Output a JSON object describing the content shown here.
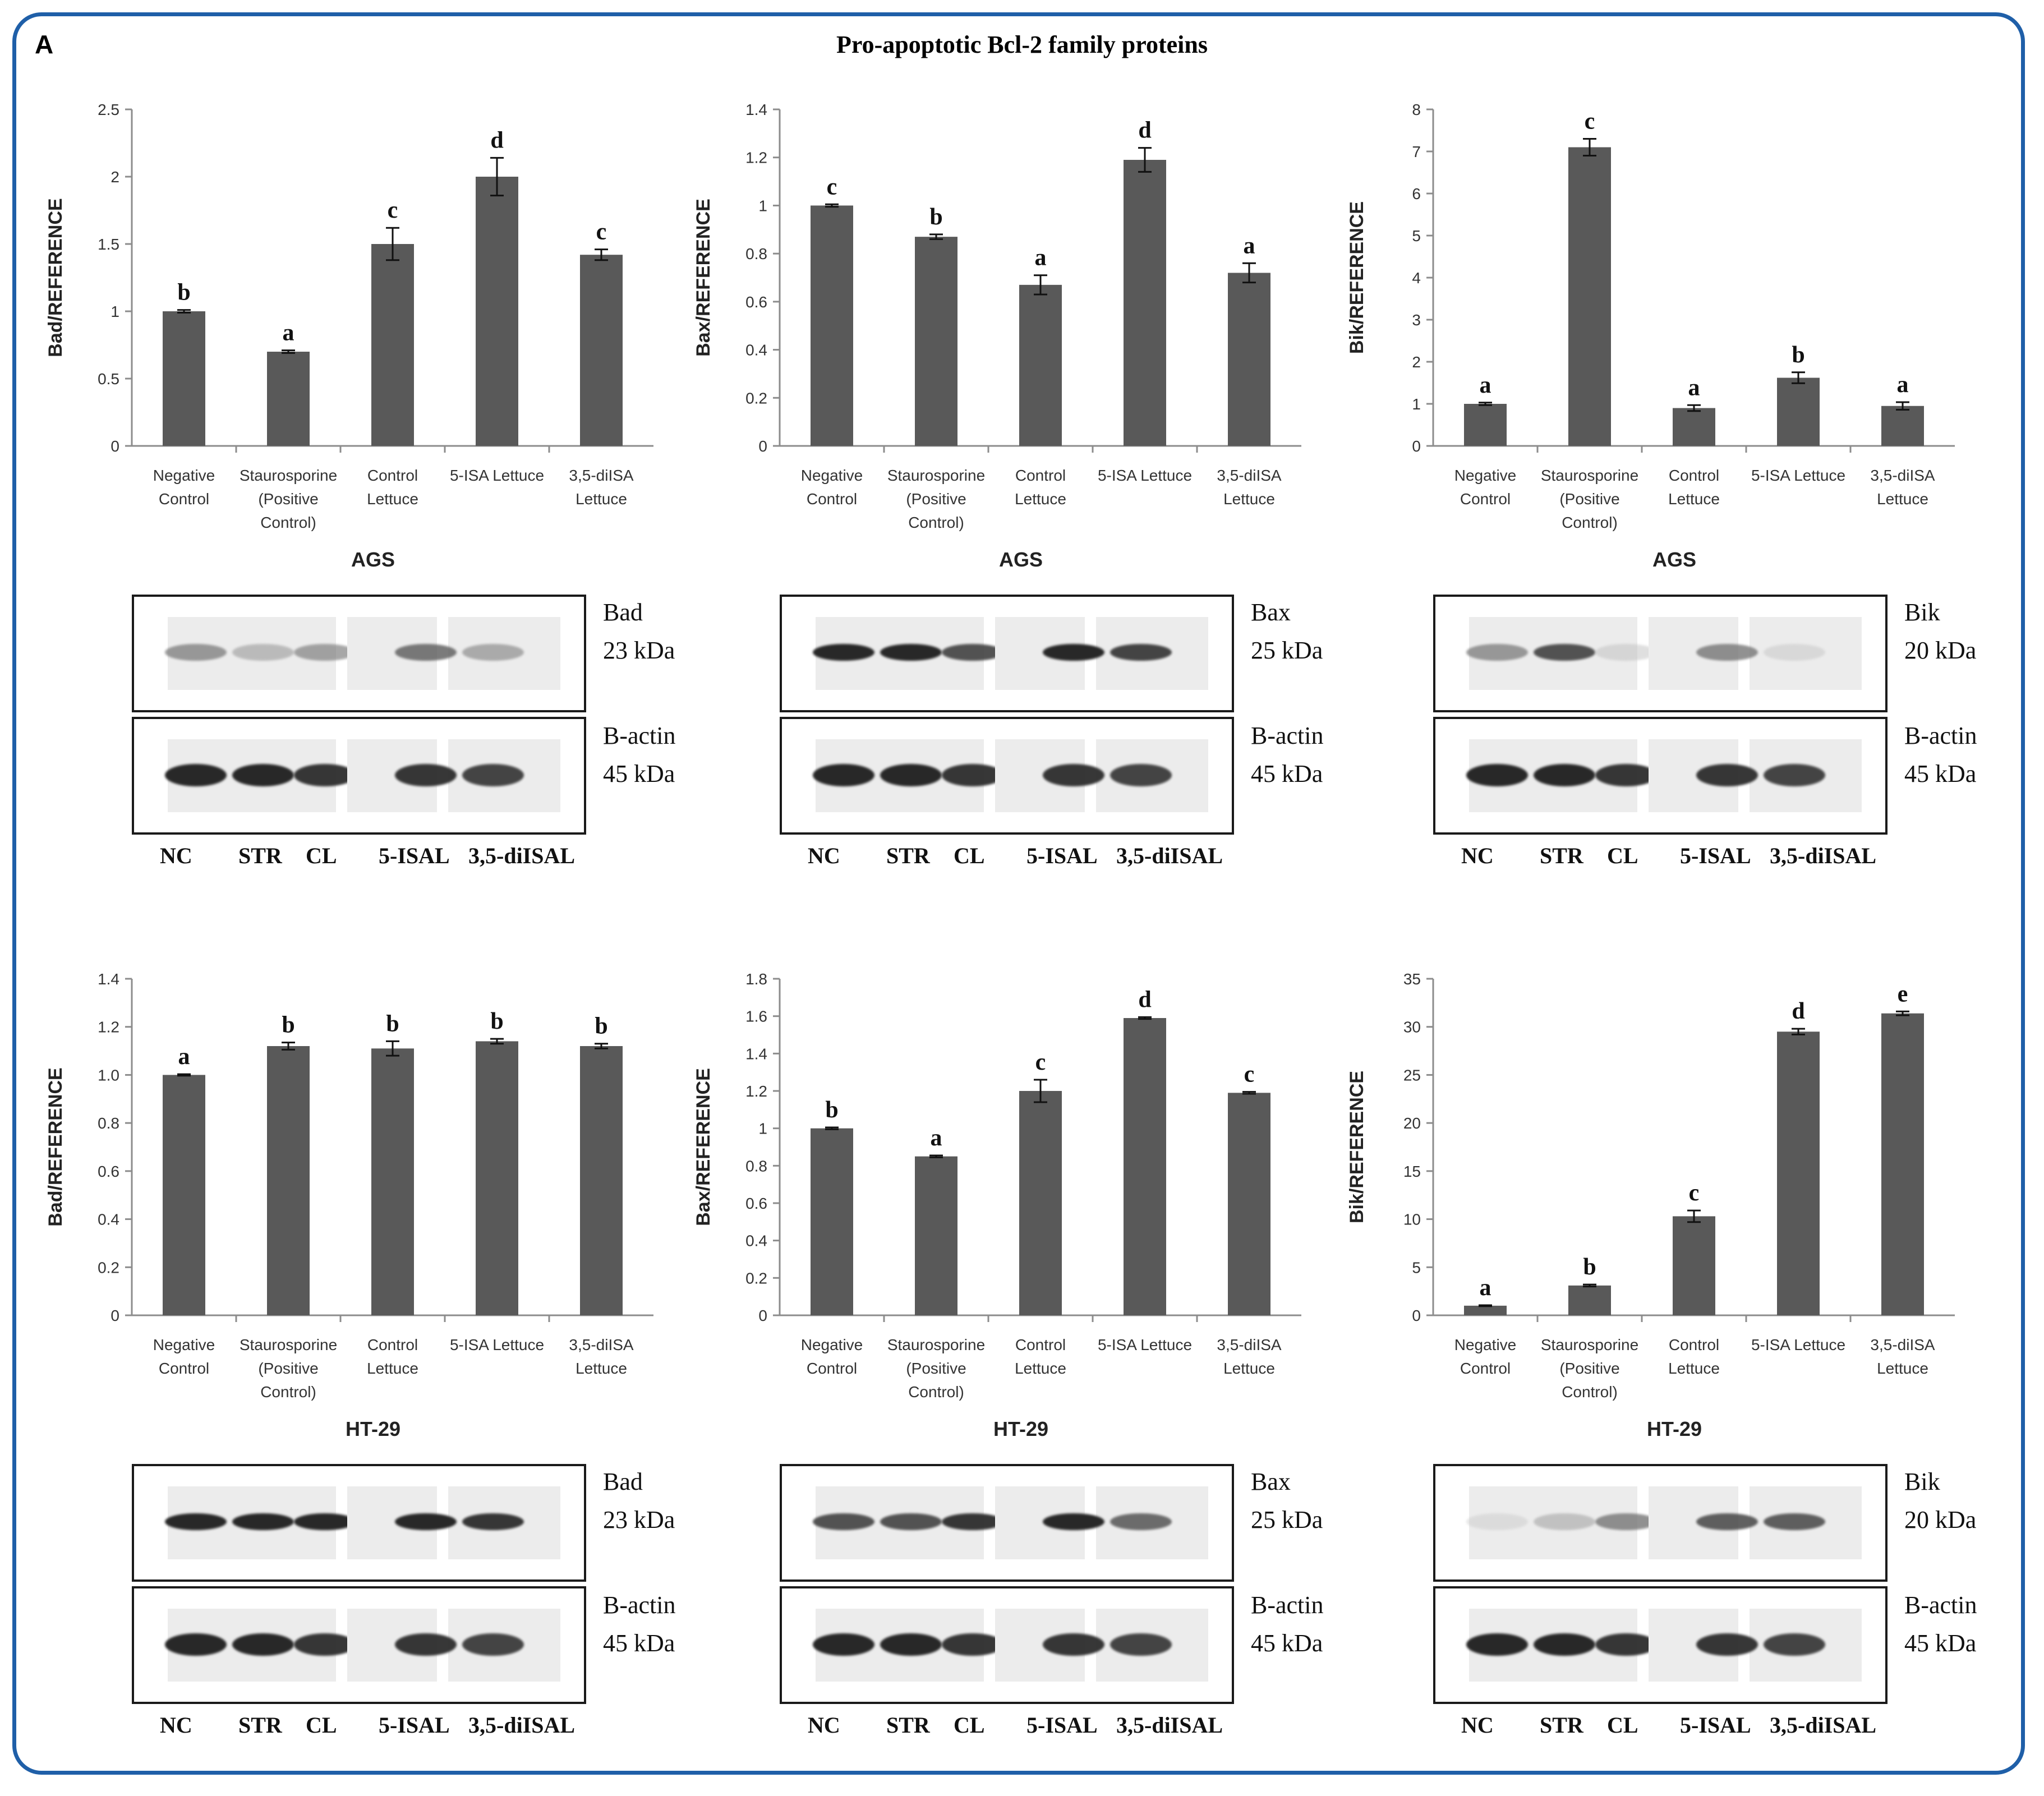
{
  "figure": {
    "letter": "A",
    "title": "Pro-apoptotic Bcl-2 family proteins"
  },
  "colors": {
    "frame": "#1f5fa8",
    "bar": "#595959",
    "axis": "#8c8c8c",
    "text": "#111111"
  },
  "chart_data": [
    {
      "type": "bar",
      "panel": "AGS-Bad",
      "title": "",
      "cell_line": "AGS",
      "xlabel": "",
      "ylabel": "Bad/REFERENCE",
      "ylim": [
        0,
        2.5
      ],
      "ticks": [
        0,
        0.5,
        1,
        1.5,
        2,
        2.5
      ],
      "tick_labels": [
        "0",
        "0.5",
        "1",
        "1.5",
        "2",
        "2.5"
      ],
      "categories": [
        [
          "Negative",
          "Control"
        ],
        [
          "Staurosporine",
          "(Positive",
          "Control)"
        ],
        [
          "Control",
          "Lettuce"
        ],
        [
          "5-ISA Lettuce"
        ],
        [
          "3,5-diISA",
          "Lettuce"
        ]
      ],
      "values": [
        1.0,
        0.7,
        1.5,
        2.0,
        1.42
      ],
      "errors": [
        0.01,
        0.01,
        0.12,
        0.14,
        0.04
      ],
      "letters": [
        "b",
        "a",
        "c",
        "d",
        "c"
      ]
    },
    {
      "type": "bar",
      "panel": "AGS-Bax",
      "title": "",
      "cell_line": "AGS",
      "xlabel": "",
      "ylabel": "Bax/REFERENCE",
      "ylim": [
        0,
        1.4
      ],
      "ticks": [
        0,
        0.2,
        0.4,
        0.6,
        0.8,
        1,
        1.2,
        1.4
      ],
      "tick_labels": [
        "0",
        "0.2",
        "0.4",
        "0.6",
        "0.8",
        "1",
        "1.2",
        "1.4"
      ],
      "categories": [
        [
          "Negative",
          "Control"
        ],
        [
          "Staurosporine",
          "(Positive",
          "Control)"
        ],
        [
          "Control",
          "Lettuce"
        ],
        [
          "5-ISA Lettuce"
        ],
        [
          "3,5-diISA",
          "Lettuce"
        ]
      ],
      "values": [
        1.0,
        0.87,
        0.67,
        1.19,
        0.72
      ],
      "errors": [
        0.005,
        0.01,
        0.04,
        0.05,
        0.04
      ],
      "letters": [
        "c",
        "b",
        "a",
        "d",
        "a"
      ]
    },
    {
      "type": "bar",
      "panel": "AGS-Bik",
      "title": "",
      "cell_line": "AGS",
      "xlabel": "",
      "ylabel": "Bik/REFERENCE",
      "ylim": [
        0,
        8
      ],
      "ticks": [
        0,
        1,
        2,
        3,
        4,
        5,
        6,
        7,
        8
      ],
      "tick_labels": [
        "0",
        "1",
        "2",
        "3",
        "4",
        "5",
        "6",
        "7",
        "8"
      ],
      "categories": [
        [
          "Negative",
          "Control"
        ],
        [
          "Staurosporine",
          "(Positive",
          "Control)"
        ],
        [
          "Control",
          "Lettuce"
        ],
        [
          "5-ISA Lettuce"
        ],
        [
          "3,5-diISA",
          "Lettuce"
        ]
      ],
      "values": [
        1.0,
        7.1,
        0.9,
        1.62,
        0.95
      ],
      "errors": [
        0.03,
        0.2,
        0.07,
        0.13,
        0.09
      ],
      "letters": [
        "a",
        "c",
        "a",
        "b",
        "a"
      ]
    },
    {
      "type": "bar",
      "panel": "HT29-Bad",
      "title": "",
      "cell_line": "HT-29",
      "xlabel": "",
      "ylabel": "Bad/REFERENCE",
      "ylim": [
        0,
        1.4
      ],
      "ticks": [
        0,
        0.2,
        0.4,
        0.6,
        0.8,
        1.0,
        1.2,
        1.4
      ],
      "tick_labels": [
        "0",
        "0.2",
        "0.4",
        "0.6",
        "0.8",
        "1.0",
        "1.2",
        "1.4"
      ],
      "categories": [
        [
          "Negative",
          "Control"
        ],
        [
          "Staurosporine",
          "(Positive",
          "Control)"
        ],
        [
          "Control",
          "Lettuce"
        ],
        [
          "5-ISA Lettuce"
        ],
        [
          "3,5-diISA",
          "Lettuce"
        ]
      ],
      "values": [
        1.0,
        1.12,
        1.11,
        1.14,
        1.12
      ],
      "errors": [
        0.003,
        0.015,
        0.03,
        0.01,
        0.01
      ],
      "letters": [
        "a",
        "b",
        "b",
        "b",
        "b"
      ]
    },
    {
      "type": "bar",
      "panel": "HT29-Bax",
      "title": "",
      "cell_line": "HT-29",
      "xlabel": "",
      "ylabel": "Bax/REFERENCE",
      "ylim": [
        0,
        1.8
      ],
      "ticks": [
        0,
        0.2,
        0.4,
        0.6,
        0.8,
        1,
        1.2,
        1.4,
        1.6,
        1.8
      ],
      "tick_labels": [
        "0",
        "0.2",
        "0.4",
        "0.6",
        "0.8",
        "1",
        "1.2",
        "1.4",
        "1.6",
        "1.8"
      ],
      "categories": [
        [
          "Negative",
          "Control"
        ],
        [
          "Staurosporine",
          "(Positive",
          "Control)"
        ],
        [
          "Control",
          "Lettuce"
        ],
        [
          "5-ISA Lettuce"
        ],
        [
          "3,5-diISA",
          "Lettuce"
        ]
      ],
      "values": [
        1.0,
        0.85,
        1.2,
        1.59,
        1.19
      ],
      "errors": [
        0.005,
        0.005,
        0.06,
        0.005,
        0.005
      ],
      "letters": [
        "b",
        "a",
        "c",
        "d",
        "c"
      ]
    },
    {
      "type": "bar",
      "panel": "HT29-Bik",
      "title": "",
      "cell_line": "HT-29",
      "xlabel": "",
      "ylabel": "Bik/REFERENCE",
      "ylim": [
        0,
        35
      ],
      "ticks": [
        0,
        5,
        10,
        15,
        20,
        25,
        30,
        35
      ],
      "tick_labels": [
        "0",
        "5",
        "10",
        "15",
        "20",
        "25",
        "30",
        "35"
      ],
      "categories": [
        [
          "Negative",
          "Control"
        ],
        [
          "Staurosporine",
          "(Positive",
          "Control)"
        ],
        [
          "Control",
          "Lettuce"
        ],
        [
          "5-ISA Lettuce"
        ],
        [
          "3,5-diISA",
          "Lettuce"
        ]
      ],
      "values": [
        1.0,
        3.1,
        10.3,
        29.5,
        31.4
      ],
      "errors": [
        0.05,
        0.1,
        0.6,
        0.3,
        0.2
      ],
      "letters": [
        "a",
        "b",
        "c",
        "d",
        "e"
      ]
    }
  ],
  "blots": [
    {
      "protein": "Bad",
      "protein_kda": "23 kDa",
      "actin": "B-actin",
      "actin_kda": "45 kDa",
      "lanes": [
        "NC",
        "STR",
        "CL",
        "5-ISAL",
        "3,5-diISAL"
      ],
      "top_intensity": [
        0.55,
        0.35,
        0.5,
        0.7,
        0.45
      ],
      "bottom_intensity": [
        1,
        1,
        0.95,
        0.95,
        0.9
      ]
    },
    {
      "protein": "Bax",
      "protein_kda": "25 kDa",
      "actin": "B-actin",
      "actin_kda": "45 kDa",
      "lanes": [
        "NC",
        "STR",
        "CL",
        "5-ISAL",
        "3,5-diISAL"
      ],
      "top_intensity": [
        1,
        1,
        0.85,
        1,
        0.9
      ],
      "bottom_intensity": [
        1,
        1,
        0.95,
        0.95,
        0.9
      ]
    },
    {
      "protein": "Bik",
      "protein_kda": "20 kDa",
      "actin": "B-actin",
      "actin_kda": "45 kDa",
      "lanes": [
        "NC",
        "STR",
        "CL",
        "5-ISAL",
        "3,5-diISAL"
      ],
      "top_intensity": [
        0.55,
        0.85,
        0.15,
        0.6,
        0.12
      ],
      "bottom_intensity": [
        1,
        1,
        0.95,
        0.95,
        0.9
      ]
    },
    {
      "protein": "Bad",
      "protein_kda": "23 kDa",
      "actin": "B-actin",
      "actin_kda": "45 kDa",
      "lanes": [
        "NC",
        "STR",
        "CL",
        "5-ISAL",
        "3,5-diISAL"
      ],
      "top_intensity": [
        1,
        1,
        1,
        1,
        0.95
      ],
      "bottom_intensity": [
        1,
        1,
        0.95,
        0.95,
        0.9
      ]
    },
    {
      "protein": "Bax",
      "protein_kda": "25 kDa",
      "actin": "B-actin",
      "actin_kda": "45 kDa",
      "lanes": [
        "NC",
        "STR",
        "CL",
        "5-ISAL",
        "3,5-diISAL"
      ],
      "top_intensity": [
        0.85,
        0.85,
        0.95,
        1,
        0.75
      ],
      "bottom_intensity": [
        1,
        1,
        0.95,
        0.95,
        0.9
      ]
    },
    {
      "protein": "Bik",
      "protein_kda": "20 kDa",
      "actin": "B-actin",
      "actin_kda": "45 kDa",
      "lanes": [
        "NC",
        "STR",
        "CL",
        "5-ISAL",
        "3,5-diISAL"
      ],
      "top_intensity": [
        0.08,
        0.3,
        0.6,
        0.8,
        0.8
      ],
      "bottom_intensity": [
        1,
        1,
        0.95,
        0.95,
        0.9
      ]
    }
  ]
}
